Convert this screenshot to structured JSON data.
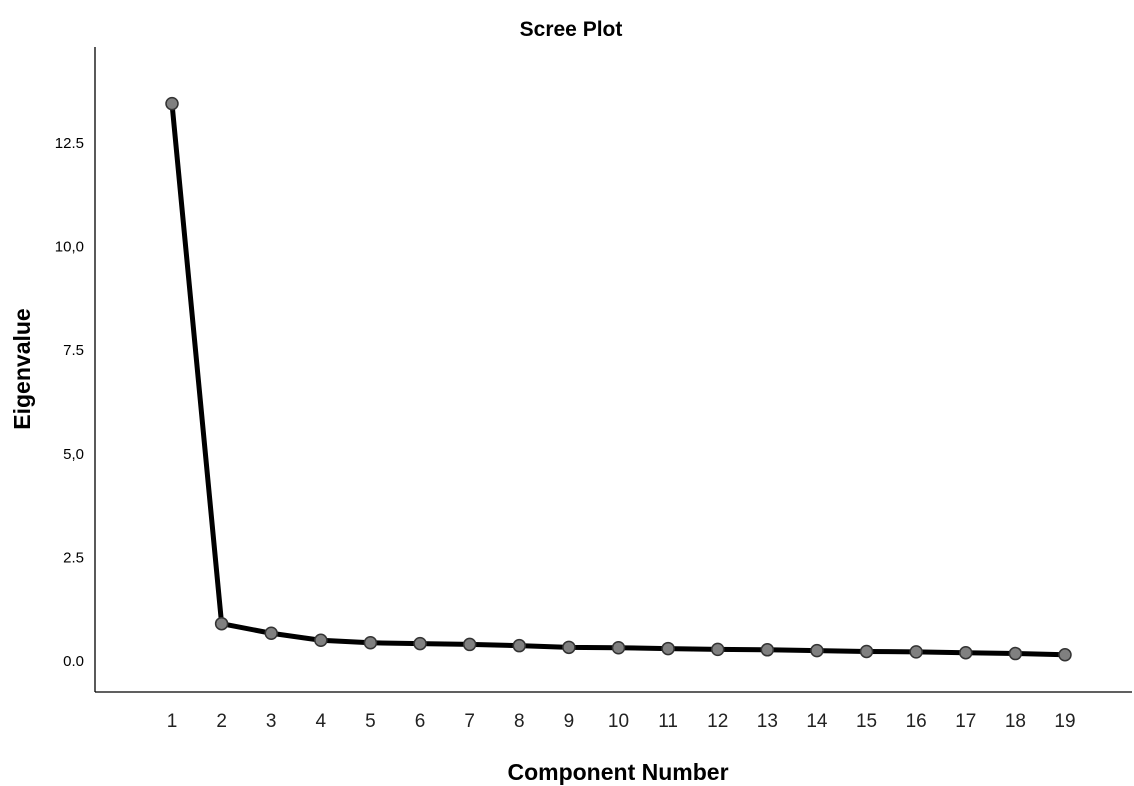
{
  "chart_data": {
    "type": "line",
    "title": "Scree Plot",
    "xlabel": "Component Number",
    "ylabel": "Eigenvalue",
    "x": [
      1,
      2,
      3,
      4,
      5,
      6,
      7,
      8,
      9,
      10,
      11,
      12,
      13,
      14,
      15,
      16,
      17,
      18,
      19
    ],
    "x_tick_labels": [
      "1",
      "2",
      "3",
      "4",
      "5",
      "6",
      "7",
      "8",
      "9",
      "10",
      "11",
      "12",
      "13",
      "14",
      "15",
      "16",
      "17",
      "18",
      "19"
    ],
    "series": [
      {
        "values": [
          13.45,
          0.9,
          0.67,
          0.5,
          0.44,
          0.42,
          0.4,
          0.37,
          0.33,
          0.32,
          0.3,
          0.28,
          0.27,
          0.25,
          0.23,
          0.22,
          0.2,
          0.18,
          0.15
        ]
      }
    ],
    "y_ticks": [
      0,
      2.5,
      5,
      7.5,
      10,
      12.5
    ],
    "y_tick_labels": [
      "0.0",
      "2.5",
      "5,0",
      "7.5",
      "10,0",
      "12.5"
    ],
    "ylim": [
      -0.75,
      14.9
    ],
    "xlim": [
      0,
      20
    ],
    "grid": false,
    "legend": "none",
    "line_color": "#000000",
    "marker_fill": "#808080",
    "marker_stroke": "#333333"
  }
}
